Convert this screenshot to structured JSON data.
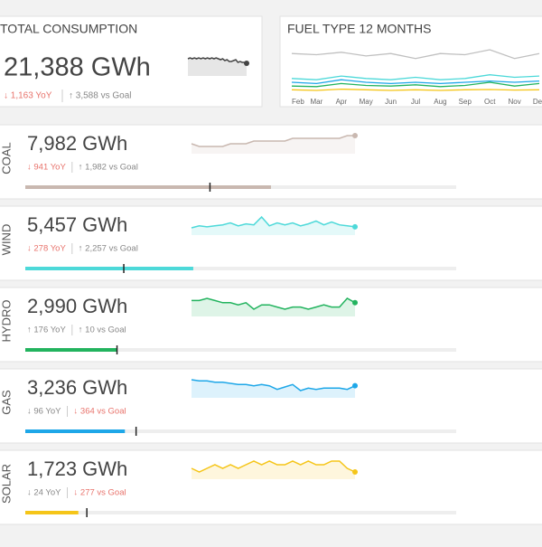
{
  "total": {
    "title": "TOTAL CONSUMPTION",
    "value": "21,388 GWh",
    "yoy": "↓ 1,163 YoY",
    "yoy_color": "#e8736c",
    "goal": "↑ 3,588 vs Goal",
    "goal_color": "#888888",
    "color": "#444444",
    "spark": [
      60,
      61,
      60,
      61,
      60,
      61,
      60,
      61,
      60,
      61,
      60,
      61,
      60,
      61,
      60,
      59,
      60,
      58,
      59,
      57,
      57,
      58,
      59,
      56,
      57,
      56,
      56,
      55
    ]
  },
  "fuel_chart": {
    "title": "FUEL TYPE 12 MONTHS",
    "categories": [
      "Feb",
      "Mar",
      "Apr",
      "May",
      "Jun",
      "Jul",
      "Aug",
      "Sep",
      "Oct",
      "Nov",
      "Dec"
    ],
    "series": [
      {
        "name": "Coal",
        "color": "#c0c0c0",
        "values": [
          700,
          690,
          710,
          680,
          700,
          660,
          700,
          690,
          730,
          660,
          700
        ]
      },
      {
        "name": "Wind",
        "color": "#4dd9d9",
        "values": [
          500,
          490,
          520,
          500,
          490,
          510,
          490,
          500,
          530,
          510,
          520
        ]
      },
      {
        "name": "Gas",
        "color": "#1ea7e8",
        "values": [
          470,
          460,
          490,
          470,
          460,
          470,
          460,
          470,
          480,
          470,
          480
        ]
      },
      {
        "name": "Hydro",
        "color": "#22b35e",
        "values": [
          440,
          435,
          460,
          445,
          440,
          450,
          435,
          445,
          470,
          440,
          460
        ]
      },
      {
        "name": "Solar",
        "color": "#f5c518",
        "values": [
          410,
          405,
          415,
          410,
          405,
          410,
          405,
          410,
          412,
          408,
          410
        ]
      }
    ]
  },
  "rows": [
    {
      "label": "COAL",
      "value_text": "7,982 GWh",
      "yoy": "↓ 941 YoY",
      "yoy_color": "#e8736c",
      "goal_text": "↑ 1,982 vs Goal",
      "goal_color": "#888888",
      "color": "#c9b8b0",
      "value": 7982,
      "goal": 6000,
      "xlim": [
        0,
        14000
      ],
      "spark": [
        52,
        51,
        51,
        51,
        51,
        52,
        52,
        52,
        53,
        53,
        53,
        53,
        53,
        54,
        54,
        54,
        54,
        54,
        54,
        54,
        55,
        55
      ]
    },
    {
      "label": "WIND",
      "value_text": "5,457 GWh",
      "yoy": "↓ 278 YoY",
      "yoy_color": "#e8736c",
      "goal_text": "↑ 2,257 vs Goal",
      "goal_color": "#888888",
      "color": "#4dd9d9",
      "value": 5457,
      "goal": 3200,
      "xlim": [
        0,
        14000
      ],
      "spark": [
        45,
        47,
        46,
        47,
        48,
        50,
        47,
        49,
        48,
        56,
        47,
        50,
        48,
        50,
        47,
        49,
        52,
        48,
        51,
        48,
        47,
        46
      ]
    },
    {
      "label": "HYDRO",
      "value_text": "2,990 GWh",
      "yoy": "↑ 176 YoY",
      "yoy_color": "#888888",
      "goal_text": "↑ 10 vs Goal",
      "goal_color": "#888888",
      "color": "#22b35e",
      "value": 2990,
      "goal": 2980,
      "xlim": [
        0,
        14000
      ],
      "spark": [
        50,
        50,
        51,
        50,
        49,
        49,
        48,
        49,
        46,
        48,
        48,
        47,
        46,
        47,
        47,
        46,
        47,
        48,
        47,
        47,
        51,
        49
      ]
    },
    {
      "label": "GAS",
      "value_text": "3,236 GWh",
      "yoy": "↓ 96 YoY",
      "yoy_color": "#888888",
      "goal_text": "↓ 364 vs Goal",
      "goal_color": "#e8736c",
      "color": "#1ea7e8",
      "value": 3236,
      "goal": 3600,
      "xlim": [
        0,
        14000
      ],
      "spark": [
        55,
        54,
        54,
        53,
        53,
        52,
        51,
        51,
        50,
        51,
        50,
        47,
        49,
        51,
        46,
        48,
        47,
        48,
        48,
        48,
        47,
        50
      ]
    },
    {
      "label": "SOLAR",
      "value_text": "1,723 GWh",
      "yoy": "↓ 24 YoY",
      "yoy_color": "#888888",
      "goal_text": "↓ 277 vs Goal",
      "goal_color": "#e8736c",
      "color": "#f5c518",
      "value": 1723,
      "goal": 2000,
      "xlim": [
        0,
        14000
      ],
      "spark": [
        50,
        49,
        50,
        51,
        50,
        51,
        50,
        51,
        52,
        51,
        52,
        51,
        51,
        52,
        51,
        52,
        51,
        51,
        52,
        52,
        50,
        49
      ]
    }
  ]
}
